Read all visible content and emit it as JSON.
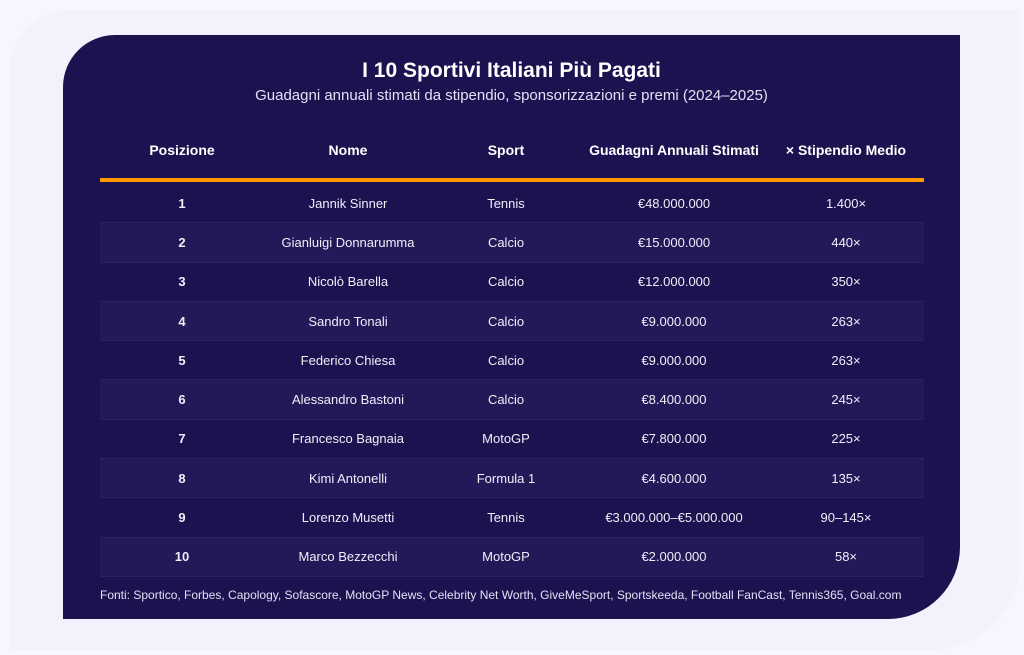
{
  "title": "I 10 Sportivi Italiani Più Pagati",
  "subtitle": "Guadagni annuali stimati da stipendio, sponsorizzazioni e premi (2024–2025)",
  "colors": {
    "background": "#1c1250",
    "accent": "#ff9800"
  },
  "columns": [
    "Posizione",
    "Nome",
    "Sport",
    "Guadagni Annuali Stimati",
    "× Stipendio Medio"
  ],
  "rows": [
    [
      "1",
      "Jannik Sinner",
      "Tennis",
      "€48.000.000",
      "1.400×"
    ],
    [
      "2",
      "Gianluigi Donnarumma",
      "Calcio",
      "€15.000.000",
      "440×"
    ],
    [
      "3",
      "Nicolò Barella",
      "Calcio",
      "€12.000.000",
      "350×"
    ],
    [
      "4",
      "Sandro Tonali",
      "Calcio",
      "€9.000.000",
      "263×"
    ],
    [
      "5",
      "Federico Chiesa",
      "Calcio",
      "€9.000.000",
      "263×"
    ],
    [
      "6",
      "Alessandro Bastoni",
      "Calcio",
      "€8.400.000",
      "245×"
    ],
    [
      "7",
      "Francesco Bagnaia",
      "MotoGP",
      "€7.800.000",
      "225×"
    ],
    [
      "8",
      "Kimi Antonelli",
      "Formula 1",
      "€4.600.000",
      "135×"
    ],
    [
      "9",
      "Lorenzo Musetti",
      "Tennis",
      "€3.000.000–€5.000.000",
      "90–145×"
    ],
    [
      "10",
      "Marco Bezzecchi",
      "MotoGP",
      "€2.000.000",
      "58×"
    ]
  ],
  "footer": "Fonti: Sportico, Forbes, Capology, Sofascore, MotoGP News, Celebrity Net Worth, GiveMeSport, Sportskeeda, Football FanCast, Tennis365, Goal.com"
}
